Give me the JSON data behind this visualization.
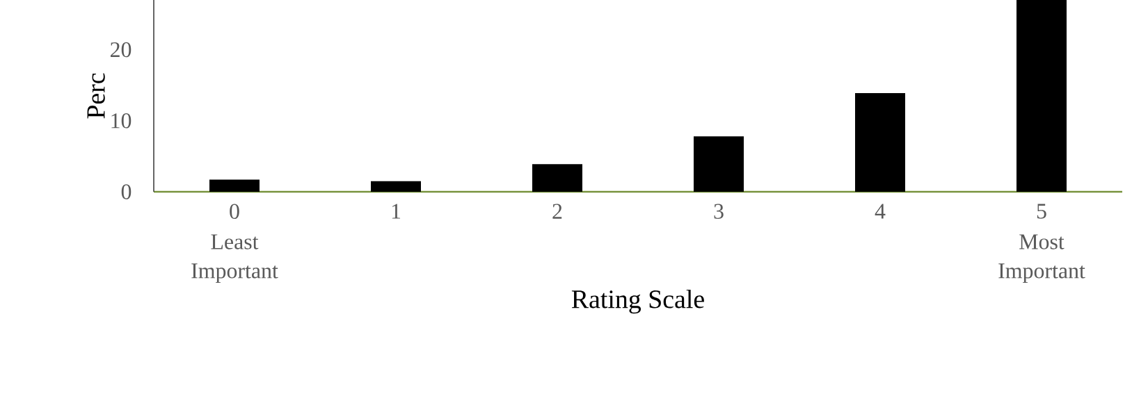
{
  "chart_data": {
    "type": "bar",
    "xlabel": "Rating Scale",
    "ylabel": "Perc",
    "categories": [
      "0",
      "1",
      "2",
      "3",
      "4",
      "5"
    ],
    "values": [
      1.7,
      1.5,
      3.9,
      7.8,
      13.9,
      27
    ],
    "color": "#000000",
    "ylim": [
      0,
      27
    ],
    "yticks": [
      0,
      10,
      20
    ],
    "annotations": [
      "Least Important",
      "Most Important"
    ]
  }
}
